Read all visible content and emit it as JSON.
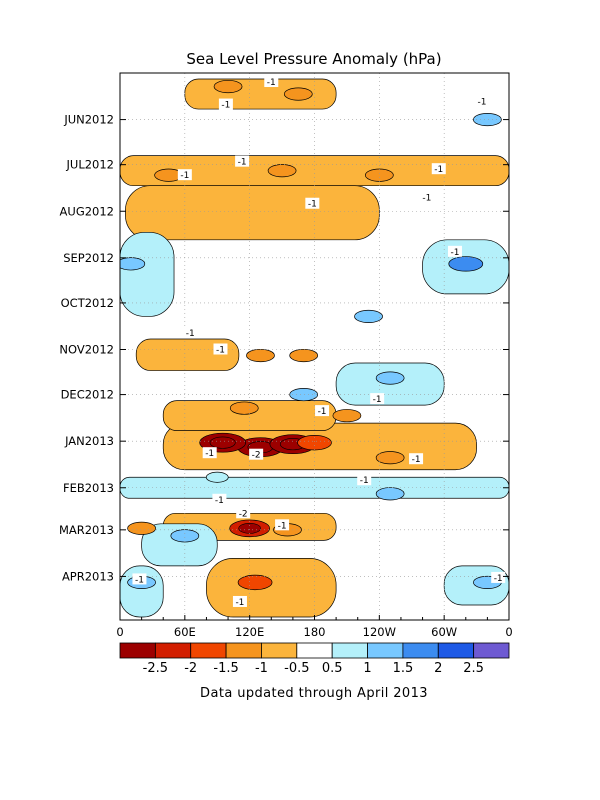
{
  "chart_data": {
    "type": "heatmap",
    "title": "Sea Level Pressure Anomaly (hPa)",
    "xlabel": "",
    "ylabel": "",
    "x_ticks": [
      "0",
      "60E",
      "120E",
      "180",
      "120W",
      "60W",
      "0"
    ],
    "y_ticks": [
      "JUN2012",
      "JUL2012",
      "AUG2012",
      "SEP2012",
      "OCT2012",
      "NOV2012",
      "DEC2012",
      "JAN2013",
      "FEB2013",
      "MAR2013",
      "APR2013"
    ],
    "x_lon_range": [
      0,
      360
    ],
    "y_time_range": [
      "2012-05",
      "2013-04"
    ],
    "colorbar": {
      "tick_labels": [
        "-2.5",
        "-2",
        "-1.5",
        "-1",
        "-0.5",
        "0.5",
        "1",
        "1.5",
        "2",
        "2.5"
      ],
      "colors": [
        "#9c0000",
        "#d21e00",
        "#f04600",
        "#f5941e",
        "#fbb43c",
        "#ffffff",
        "#b4f0fa",
        "#78c8ff",
        "#3c8cf0",
        "#1e5ae6",
        "#6e5ad2"
      ]
    },
    "anomaly_regions": [
      {
        "lon": 130,
        "date": "2013-01-05",
        "value": -2.5
      },
      {
        "lon": 95,
        "date": "2013-01-02",
        "value": -2.5
      },
      {
        "lon": 160,
        "date": "2013-01-03",
        "value": -2.5
      },
      {
        "lon": 180,
        "date": "2013-01-02",
        "value": -1.5
      },
      {
        "lon": 250,
        "date": "2013-01-12",
        "value": -1
      },
      {
        "lon": 210,
        "date": "2012-12-15",
        "value": -1
      },
      {
        "lon": 115,
        "date": "2012-12-10",
        "value": -1
      },
      {
        "lon": 120,
        "date": "2013-02-28",
        "value": -2
      },
      {
        "lon": 155,
        "date": "2013-03-01",
        "value": -1
      },
      {
        "lon": 150,
        "date": "2012-07-05",
        "value": -1
      },
      {
        "lon": 240,
        "date": "2012-07-08",
        "value": -1
      },
      {
        "lon": 45,
        "date": "2012-07-08",
        "value": -1
      },
      {
        "lon": 100,
        "date": "2012-05-10",
        "value": -1
      },
      {
        "lon": 165,
        "date": "2012-05-15",
        "value": -1
      },
      {
        "lon": 130,
        "date": "2012-11-05",
        "value": -1
      },
      {
        "lon": 170,
        "date": "2012-11-05",
        "value": -1
      },
      {
        "lon": 125,
        "date": "2013-04-05",
        "value": -1.5
      },
      {
        "lon": 20,
        "date": "2013-02-28",
        "value": -1
      },
      {
        "lon": 250,
        "date": "2012-11-20",
        "value": 1
      },
      {
        "lon": 320,
        "date": "2012-09-05",
        "value": 1.5
      },
      {
        "lon": 340,
        "date": "2012-06-01",
        "value": 1
      },
      {
        "lon": 10,
        "date": "2012-09-05",
        "value": 1
      },
      {
        "lon": 90,
        "date": "2013-01-25",
        "value": 0.5
      },
      {
        "lon": 250,
        "date": "2013-02-05",
        "value": 1
      },
      {
        "lon": 60,
        "date": "2013-03-05",
        "value": 1
      },
      {
        "lon": 340,
        "date": "2013-04-05",
        "value": 1
      },
      {
        "lon": 20,
        "date": "2013-04-05",
        "value": 1
      },
      {
        "lon": 170,
        "date": "2012-12-01",
        "value": 1
      },
      {
        "lon": 230,
        "date": "2012-10-10",
        "value": 1
      }
    ],
    "contour_labels": [
      {
        "text": "-1",
        "lon": 140,
        "date": "2012-05-07"
      },
      {
        "text": "-1",
        "lon": 98,
        "date": "2012-05-22"
      },
      {
        "text": "-1",
        "lon": 335,
        "date": "2012-05-20"
      },
      {
        "text": "-1",
        "lon": 113,
        "date": "2012-06-29"
      },
      {
        "text": "-1",
        "lon": 60,
        "date": "2012-07-08"
      },
      {
        "text": "-1",
        "lon": 295,
        "date": "2012-07-04"
      },
      {
        "text": "-1",
        "lon": 178,
        "date": "2012-07-27"
      },
      {
        "text": "-1",
        "lon": 284,
        "date": "2012-07-23"
      },
      {
        "text": "-1",
        "lon": 310,
        "date": "2012-08-28"
      },
      {
        "text": "-1",
        "lon": 65,
        "date": "2012-10-21"
      },
      {
        "text": "-1",
        "lon": 93,
        "date": "2012-11-01"
      },
      {
        "text": "-1",
        "lon": 238,
        "date": "2012-12-04"
      },
      {
        "text": "-1",
        "lon": 187,
        "date": "2012-12-12"
      },
      {
        "text": "-1",
        "lon": 83,
        "date": "2013-01-09"
      },
      {
        "text": "-2",
        "lon": 126,
        "date": "2013-01-10"
      },
      {
        "text": "-1",
        "lon": 274,
        "date": "2013-01-13"
      },
      {
        "text": "-1",
        "lon": 226,
        "date": "2013-01-27"
      },
      {
        "text": "-1",
        "lon": 92,
        "date": "2013-02-09"
      },
      {
        "text": "-2",
        "lon": 114,
        "date": "2013-02-18"
      },
      {
        "text": "-1",
        "lon": 150,
        "date": "2013-02-26"
      },
      {
        "text": "-1",
        "lon": 18,
        "date": "2013-04-03"
      },
      {
        "text": "-1",
        "lon": 111,
        "date": "2013-04-18"
      },
      {
        "text": "-1",
        "lon": 350,
        "date": "2013-04-02"
      }
    ]
  },
  "footer_note": "Data updated through April 2013"
}
